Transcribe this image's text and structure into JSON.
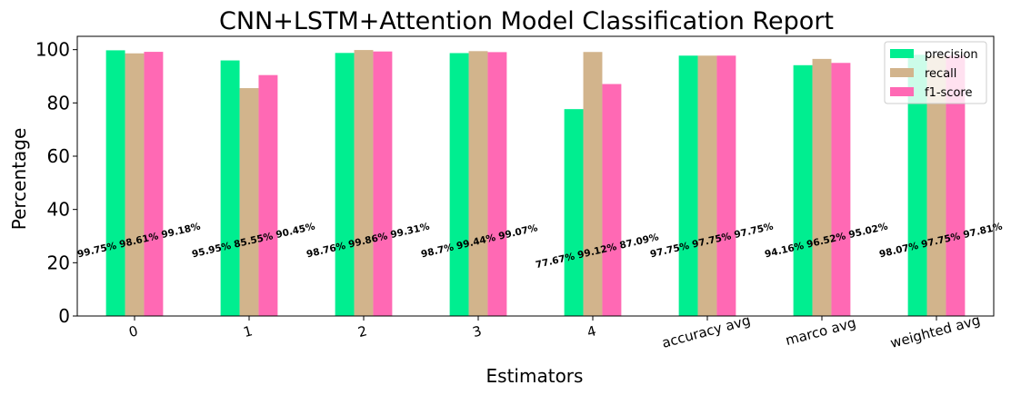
{
  "chart_data": {
    "type": "bar",
    "title": "CNN+LSTM+Attention Model Classification Report",
    "xlabel": "Estimators",
    "ylabel": "Percentage",
    "ylim": [
      0,
      105
    ],
    "yticks": [
      0,
      20,
      40,
      60,
      80,
      100
    ],
    "grid": false,
    "legend_position": "top-right",
    "categories": [
      "0",
      "1",
      "2",
      "3",
      "4",
      "accuracy avg",
      "marco avg",
      "weighted avg"
    ],
    "series": [
      {
        "name": "precision",
        "color": "#00ee90",
        "values": [
          99.75,
          95.95,
          98.76,
          98.7,
          77.67,
          97.75,
          94.16,
          98.07
        ]
      },
      {
        "name": "recall",
        "color": "#d2b48c",
        "values": [
          98.61,
          85.55,
          99.86,
          99.44,
          99.12,
          97.75,
          96.52,
          97.75
        ]
      },
      {
        "name": "f1-score",
        "color": "#ff69b4",
        "values": [
          99.18,
          90.45,
          99.31,
          99.07,
          87.09,
          97.75,
          95.02,
          97.81
        ]
      }
    ],
    "annotations": [
      "99.75% 98.61% 99.18%",
      "95.95% 85.55% 90.45%",
      "98.76% 99.86% 99.31%",
      "98.7% 99.44% 99.07%",
      "77.67% 99.12% 87.09%",
      "97.75% 97.75% 97.75%",
      "94.16% 96.52% 95.02%",
      "98.07% 97.75% 97.81%"
    ]
  }
}
